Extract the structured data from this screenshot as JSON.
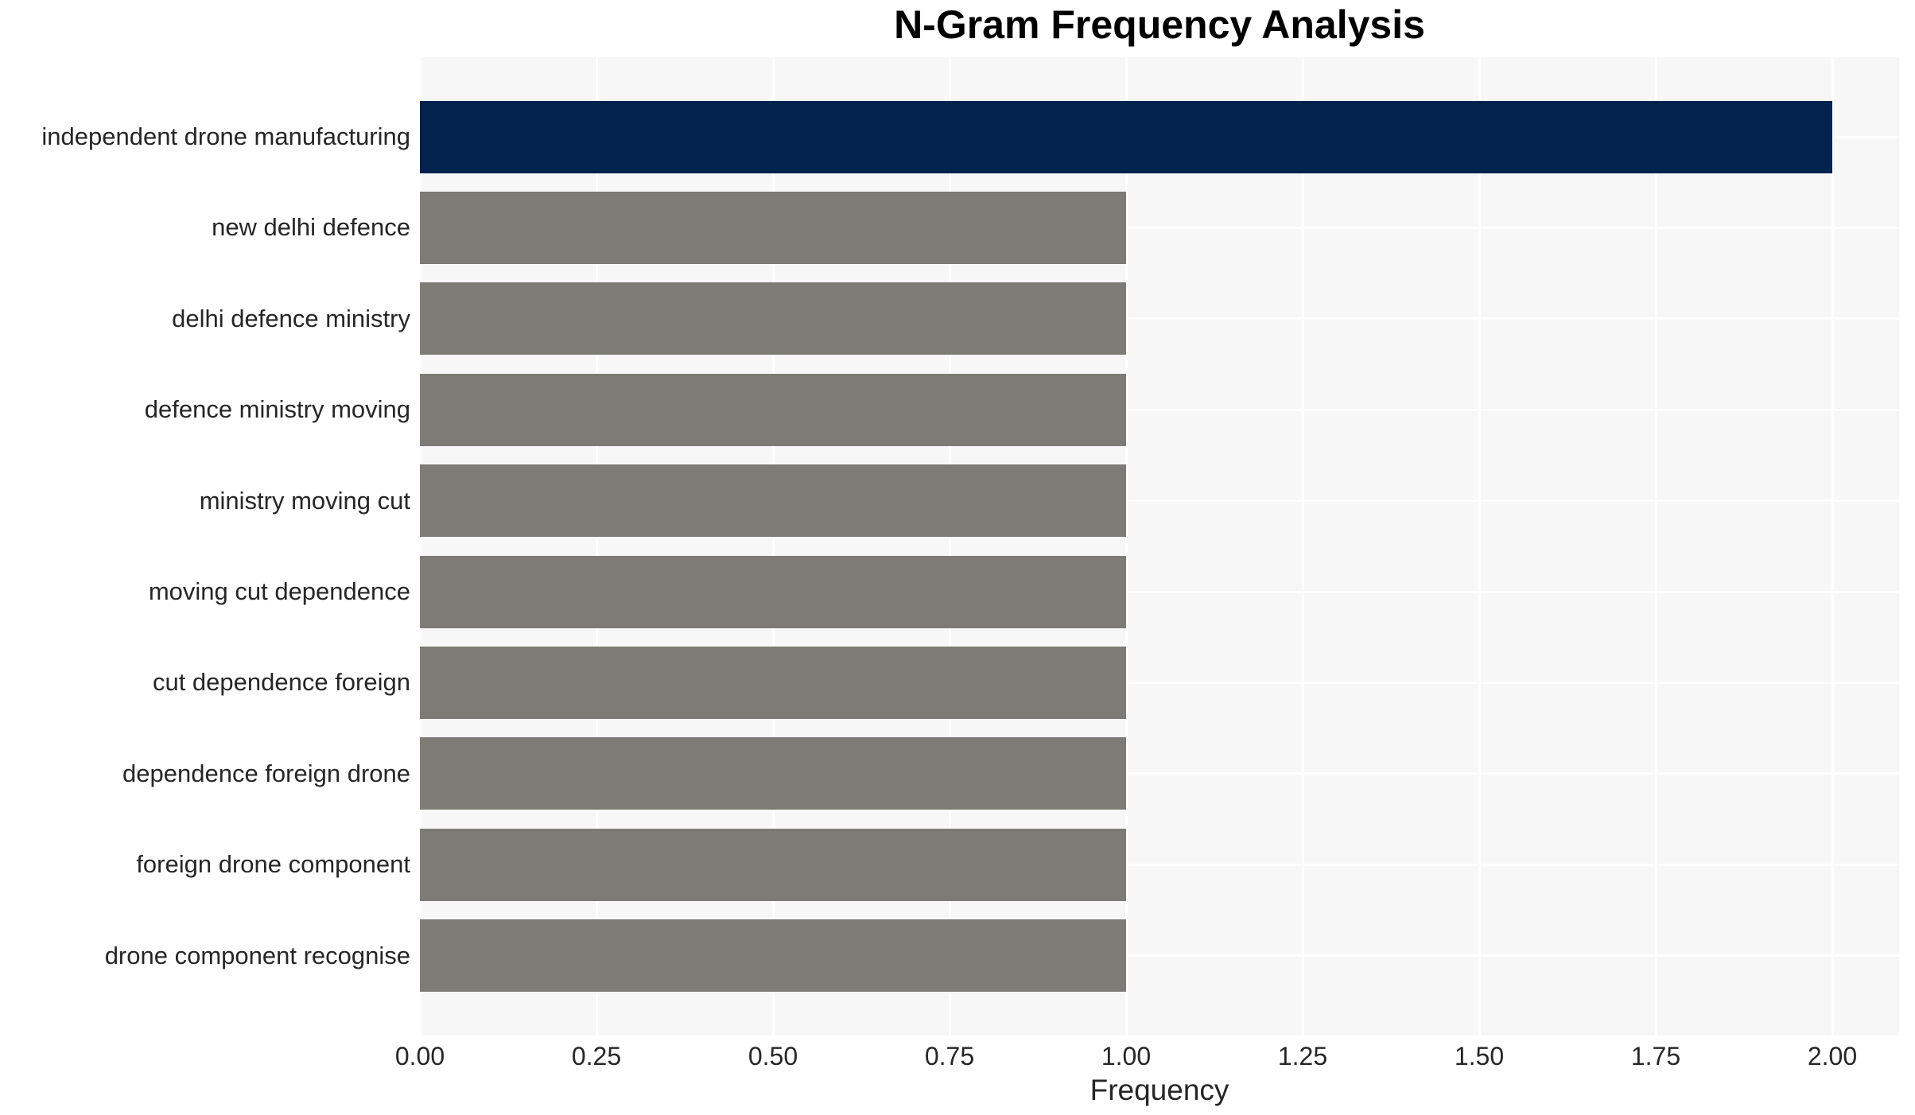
{
  "chart_data": {
    "type": "bar",
    "orientation": "horizontal",
    "title": "N-Gram Frequency Analysis",
    "xlabel": "Frequency",
    "ylabel": "",
    "categories": [
      "independent drone manufacturing",
      "new delhi defence",
      "delhi defence ministry",
      "defence ministry moving",
      "ministry moving cut",
      "moving cut dependence",
      "cut dependence foreign",
      "dependence foreign drone",
      "foreign drone component",
      "drone component recognise"
    ],
    "values": [
      2.0,
      1.0,
      1.0,
      1.0,
      1.0,
      1.0,
      1.0,
      1.0,
      1.0,
      1.0
    ],
    "bar_colors": [
      "#02234e",
      "#7c7b76",
      "#7c7b76",
      "#7c7b76",
      "#7c7b76",
      "#7c7b76",
      "#7c7b76",
      "#7c7b76",
      "#7c7b76",
      "#7c7b76"
    ],
    "xticks": [
      0.0,
      0.25,
      0.5,
      0.75,
      1.0,
      1.25,
      1.5,
      1.75,
      2.0
    ],
    "xtick_labels": [
      "0.00",
      "0.25",
      "0.50",
      "0.75",
      "1.00",
      "1.25",
      "1.50",
      "1.75",
      "2.00"
    ],
    "xlim": [
      0,
      2.09
    ],
    "grid": true,
    "legend": false,
    "colors": {
      "highlight_bar": "#02234e",
      "default_bar": "#7c7b76",
      "plot_background": "#f7f7f7",
      "figure_background": "#ffffff",
      "grid_line": "#ffffff",
      "tick_text": "#262626",
      "title_text": "#000000"
    }
  }
}
